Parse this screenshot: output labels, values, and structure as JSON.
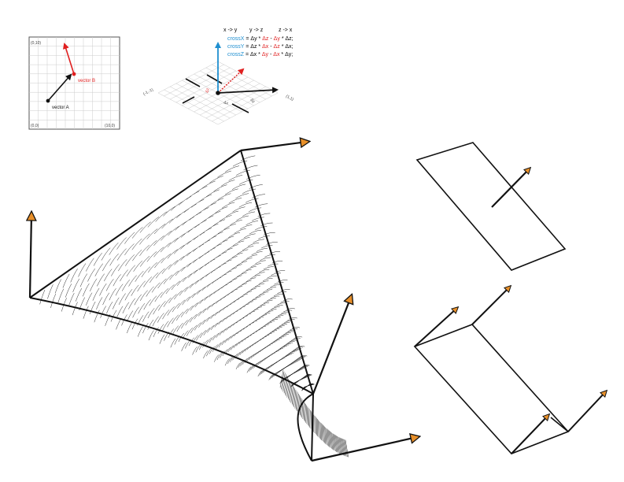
{
  "colors": {
    "ink": "#111111",
    "red": "#e02020",
    "blue": "#1f8fd0",
    "grid": "#cccccc",
    "arrowhead": "#e8902a"
  },
  "panel_2d": {
    "corner_top_left": "(0,10)",
    "corner_bottom_left": "(0,0)",
    "corner_bottom_right": "(10,0)",
    "vector_a_label": "vector A",
    "vector_b_label": "vector B"
  },
  "panel_cross": {
    "mapping": [
      "x -> y",
      "y -> z",
      "z -> x"
    ],
    "equations": [
      {
        "name": "crossX",
        "p1": "Δy",
        "p2": "Δz",
        "p3": "Δy",
        "p4": "Δz;"
      },
      {
        "name": "crossY",
        "p1": "Δz",
        "p2": "Δx",
        "p3": "Δz",
        "p4": "Δx;"
      },
      {
        "name": "crossZ",
        "p1": "Δx",
        "p2": "Δy",
        "p3": "Δx",
        "p4": "Δy;"
      }
    ],
    "op_mult": "*",
    "op_minus": "-",
    "op_eq": "=",
    "axis_left": "(-1,-1)",
    "axis_right": "(1,1)",
    "label_dx": "Δx",
    "label_dy": "Δy",
    "label_dz": "Δz"
  }
}
